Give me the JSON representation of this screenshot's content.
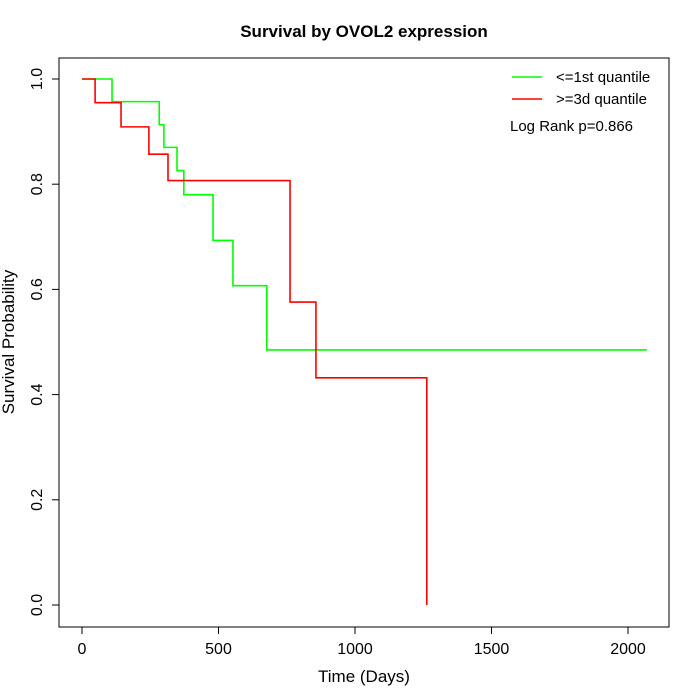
{
  "chart_data": {
    "type": "line",
    "title": "Survival by OVOL2 expression",
    "xlabel": "Time (Days)",
    "ylabel": "Survival Probability",
    "xlim": [
      -80,
      2150
    ],
    "ylim": [
      -0.04,
      1.04
    ],
    "xticks": [
      0,
      500,
      1000,
      1500,
      2000
    ],
    "yticks": [
      0.0,
      0.2,
      0.4,
      0.6,
      0.8,
      1.0
    ],
    "xtick_labels": [
      "0",
      "500",
      "1000",
      "1500",
      "2000"
    ],
    "ytick_labels": [
      "0.0",
      "0.2",
      "0.4",
      "0.6",
      "0.8",
      "1.0"
    ],
    "grid": false,
    "legend_position": "top-right",
    "annotation": "Log Rank p=0.866",
    "series": [
      {
        "name": "<=1st quantile",
        "color": "#00ff00",
        "step": true,
        "x": [
          0,
          110,
          283,
          300,
          348,
          373,
          480,
          553,
          677,
          2069
        ],
        "y": [
          1.0,
          0.957,
          0.913,
          0.87,
          0.826,
          0.78,
          0.693,
          0.607,
          0.485,
          0.485
        ]
      },
      {
        "name": ">=3d quantile",
        "color": "#ff0000",
        "step": true,
        "x": [
          0,
          48,
          143,
          245,
          315,
          762,
          857,
          1263
        ],
        "y": [
          1.0,
          0.955,
          0.909,
          0.857,
          0.807,
          0.576,
          0.432,
          0.0
        ]
      }
    ]
  }
}
